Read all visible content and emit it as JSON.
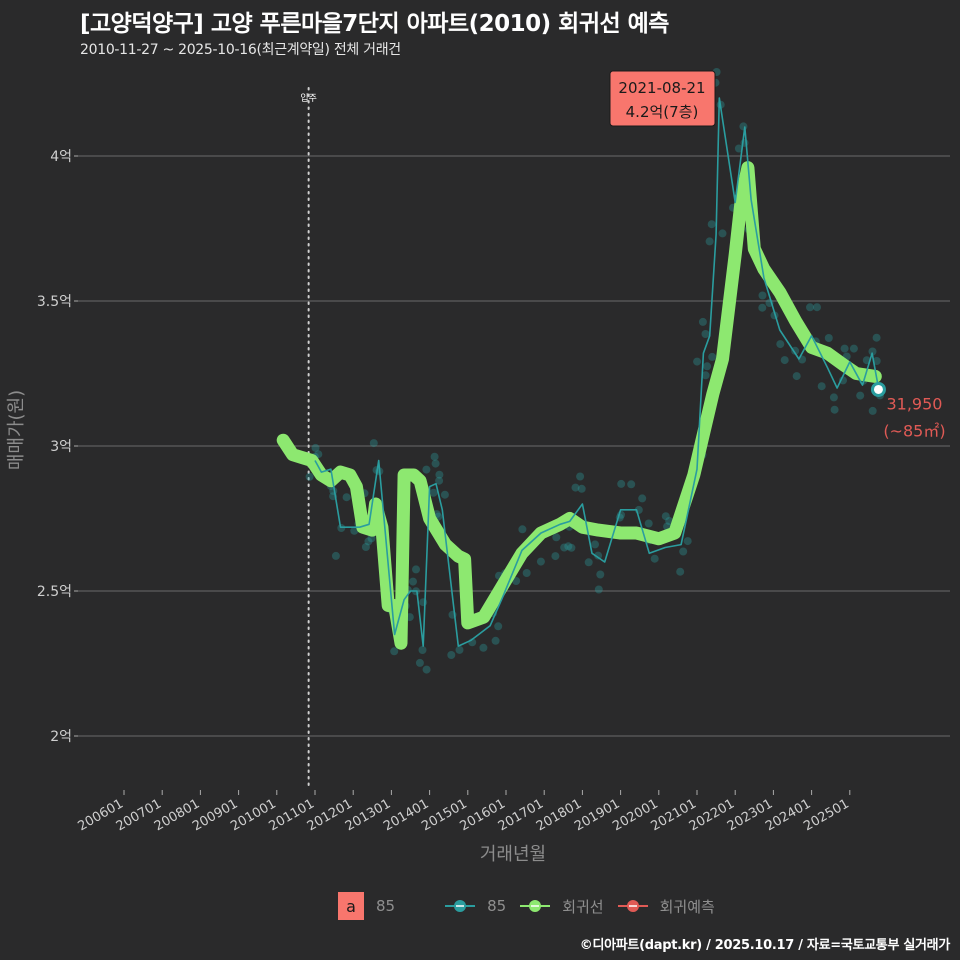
{
  "header": {
    "title": "[고양덕양구] 고양 푸른마을7단지 아파트(2010) 회귀선 예측",
    "subtitle": "2010-11-27 ~ 2025-10-16(최근계약일) 전체 거래건"
  },
  "annotations": {
    "max_box": {
      "date": "2021-08-21",
      "value": "4.2억(7층)",
      "bg": "#f8766d"
    },
    "last_value": {
      "price": "31,950",
      "area": "(~85㎡)",
      "color": "#e05a55"
    },
    "move_in_label": "입주"
  },
  "legend": {
    "text_key_letter": "a",
    "text_key_label": "85",
    "items": [
      {
        "label": "85",
        "color": "#2a9d9f"
      },
      {
        "label": "회귀선",
        "color": "#8de870"
      },
      {
        "label": "회귀예측",
        "color": "#e05a55"
      }
    ]
  },
  "caption": "©디아파트(dapt.kr) / 2025.10.17 / 자료=국토교통부 실거래가",
  "chart_data": {
    "type": "line",
    "title": "[고양덕양구] 고양 푸른마을7단지 아파트(2010) 회귀선 예측",
    "subtitle": "2010-11-27 ~ 2025-10-16(최근계약일) 전체 거래건",
    "xlabel": "거래년월",
    "ylabel": "매매가(원)",
    "x_ticks": [
      "200601",
      "200701",
      "200801",
      "200901",
      "201001",
      "201101",
      "201201",
      "201301",
      "201401",
      "201501",
      "201601",
      "201701",
      "201801",
      "201901",
      "202001",
      "202101",
      "202201",
      "202301",
      "202401",
      "202501"
    ],
    "y_ticks": [
      "2억",
      "2.5억",
      "3억",
      "3.5억",
      "4억"
    ],
    "y_tick_values": [
      2.0,
      2.5,
      3.0,
      3.5,
      4.0
    ],
    "ylim": [
      1.83,
      4.25
    ],
    "grid": "horizontal",
    "legend_position": "bottom",
    "vline": {
      "x": "2010-11",
      "label": "입주",
      "style": "dotted"
    },
    "series": [
      {
        "name": "회귀선",
        "color": "#8de870",
        "points": [
          [
            "2010-03",
            3.02
          ],
          [
            "2010-06",
            2.97
          ],
          [
            "2010-09",
            2.96
          ],
          [
            "2010-12",
            2.95
          ],
          [
            "2011-03",
            2.9
          ],
          [
            "2011-06",
            2.88
          ],
          [
            "2011-09",
            2.91
          ],
          [
            "2011-12",
            2.9
          ],
          [
            "2012-02",
            2.86
          ],
          [
            "2012-04",
            2.72
          ],
          [
            "2012-07",
            2.71
          ],
          [
            "2012-08",
            2.8
          ],
          [
            "2012-10",
            2.72
          ],
          [
            "2012-12",
            2.45
          ],
          [
            "2013-02",
            2.45
          ],
          [
            "2013-04",
            2.32
          ],
          [
            "2013-05",
            2.9
          ],
          [
            "2013-08",
            2.9
          ],
          [
            "2013-10",
            2.88
          ],
          [
            "2014-01",
            2.75
          ],
          [
            "2014-06",
            2.66
          ],
          [
            "2014-10",
            2.62
          ],
          [
            "2014-12",
            2.61
          ],
          [
            "2015-01",
            2.39
          ],
          [
            "2015-06",
            2.41
          ],
          [
            "2015-12",
            2.52
          ],
          [
            "2016-06",
            2.63
          ],
          [
            "2016-12",
            2.7
          ],
          [
            "2017-06",
            2.73
          ],
          [
            "2017-09",
            2.75
          ],
          [
            "2018-01",
            2.72
          ],
          [
            "2018-06",
            2.71
          ],
          [
            "2019-01",
            2.7
          ],
          [
            "2019-06",
            2.7
          ],
          [
            "2020-01",
            2.68
          ],
          [
            "2020-06",
            2.7
          ],
          [
            "2020-12",
            2.9
          ],
          [
            "2021-06",
            3.18
          ],
          [
            "2021-09",
            3.3
          ],
          [
            "2022-01",
            3.66
          ],
          [
            "2022-03",
            3.86
          ],
          [
            "2022-05",
            3.96
          ],
          [
            "2022-07",
            3.68
          ],
          [
            "2022-10",
            3.61
          ],
          [
            "2023-03",
            3.53
          ],
          [
            "2023-08",
            3.43
          ],
          [
            "2024-01",
            3.34
          ],
          [
            "2024-06",
            3.32
          ],
          [
            "2024-11",
            3.28
          ],
          [
            "2025-03",
            3.25
          ],
          [
            "2025-09",
            3.24
          ]
        ]
      },
      {
        "name": "85",
        "color": "#2a9d9f",
        "description": "monthly median trade line with individual trades as points",
        "points": [
          [
            "2011-01",
            2.95
          ],
          [
            "2011-03",
            2.91
          ],
          [
            "2011-06",
            2.92
          ],
          [
            "2011-09",
            2.72
          ],
          [
            "2012-03",
            2.72
          ],
          [
            "2012-06",
            2.73
          ],
          [
            "2012-09",
            2.95
          ],
          [
            "2013-02",
            2.35
          ],
          [
            "2013-05",
            2.47
          ],
          [
            "2013-07",
            2.5
          ],
          [
            "2013-09",
            2.5
          ],
          [
            "2013-11",
            2.31
          ],
          [
            "2014-01",
            2.86
          ],
          [
            "2014-03",
            2.87
          ],
          [
            "2014-05",
            2.78
          ],
          [
            "2014-10",
            2.31
          ],
          [
            "2015-02",
            2.33
          ],
          [
            "2015-08",
            2.38
          ],
          [
            "2015-12",
            2.48
          ],
          [
            "2016-06",
            2.64
          ],
          [
            "2016-12",
            2.7
          ],
          [
            "2017-06",
            2.73
          ],
          [
            "2017-09",
            2.74
          ],
          [
            "2018-01",
            2.8
          ],
          [
            "2018-04",
            2.63
          ],
          [
            "2018-08",
            2.6
          ],
          [
            "2019-01",
            2.78
          ],
          [
            "2019-06",
            2.78
          ],
          [
            "2019-10",
            2.63
          ],
          [
            "2020-03",
            2.65
          ],
          [
            "2020-08",
            2.66
          ],
          [
            "2021-01",
            2.92
          ],
          [
            "2021-03",
            3.32
          ],
          [
            "2021-05",
            3.38
          ],
          [
            "2021-07",
            3.73
          ],
          [
            "2021-08",
            4.2
          ],
          [
            "2022-01",
            3.84
          ],
          [
            "2022-04",
            4.1
          ],
          [
            "2022-06",
            3.85
          ],
          [
            "2022-10",
            3.58
          ],
          [
            "2023-03",
            3.4
          ],
          [
            "2023-09",
            3.3
          ],
          [
            "2024-01",
            3.38
          ],
          [
            "2024-06",
            3.27
          ],
          [
            "2024-09",
            3.2
          ],
          [
            "2025-01",
            3.29
          ],
          [
            "2025-05",
            3.21
          ],
          [
            "2025-08",
            3.32
          ],
          [
            "2025-10",
            3.2
          ]
        ]
      },
      {
        "name": "회귀예측",
        "color": "#e05a55",
        "points": [
          [
            "2025-10",
            3.195
          ]
        ]
      }
    ],
    "max_point": {
      "date": "2021-08-21",
      "value": 4.2,
      "floor": 7
    },
    "last_point": {
      "date": "2025-10-16",
      "value": 3.195,
      "label": "31,950",
      "area": "~85㎡"
    }
  }
}
